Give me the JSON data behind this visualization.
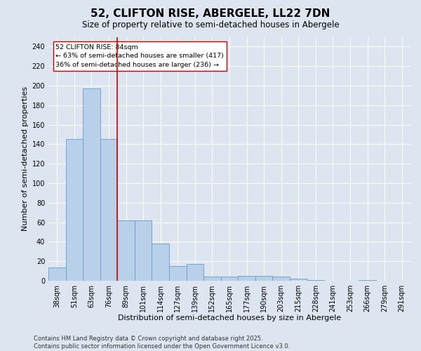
{
  "title": "52, CLIFTON RISE, ABERGELE, LL22 7DN",
  "subtitle": "Size of property relative to semi-detached houses in Abergele",
  "xlabel": "Distribution of semi-detached houses by size in Abergele",
  "ylabel": "Number of semi-detached properties",
  "categories": [
    "38sqm",
    "51sqm",
    "63sqm",
    "76sqm",
    "89sqm",
    "101sqm",
    "114sqm",
    "127sqm",
    "139sqm",
    "152sqm",
    "165sqm",
    "177sqm",
    "190sqm",
    "203sqm",
    "215sqm",
    "228sqm",
    "241sqm",
    "253sqm",
    "266sqm",
    "279sqm",
    "291sqm"
  ],
  "values": [
    14,
    145,
    197,
    145,
    62,
    62,
    38,
    15,
    17,
    4,
    4,
    5,
    5,
    4,
    2,
    1,
    0,
    0,
    1,
    0,
    0
  ],
  "bar_color": "#b8d0e8",
  "bar_edge_color": "#6699cc",
  "vline_color": "#cc0000",
  "vline_x": 3.5,
  "annotation_text": "52 CLIFTON RISE: 84sqm\n← 63% of semi-detached houses are smaller (417)\n36% of semi-detached houses are larger (236) →",
  "annotation_box_color": "#cc0000",
  "annotation_bg": "#ffffff",
  "ylim": [
    0,
    250
  ],
  "yticks": [
    0,
    20,
    40,
    60,
    80,
    100,
    120,
    140,
    160,
    180,
    200,
    220,
    240
  ],
  "bg_color": "#dde6f0",
  "footer_line1": "Contains HM Land Registry data © Crown copyright and database right 2025.",
  "footer_line2": "Contains public sector information licensed under the Open Government Licence v3.0.",
  "title_fontsize": 11,
  "subtitle_fontsize": 8.5,
  "label_fontsize": 8,
  "tick_fontsize": 7,
  "footer_fontsize": 6
}
